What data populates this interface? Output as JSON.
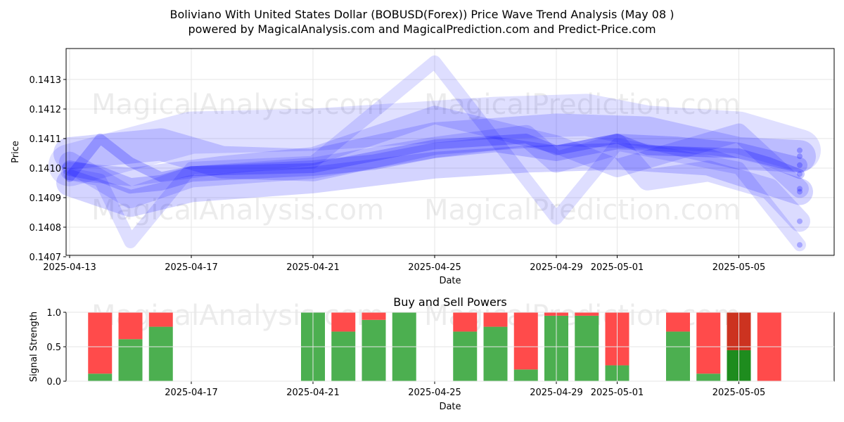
{
  "chart_data": [
    {
      "type": "line",
      "title_line1": "Boliviano With United States Dollar (BOBUSD(Forex)) Price Wave Trend Analysis (May 08 )",
      "title_line2": "powered by MagicalAnalysis.com and MagicalPrediction.com and Predict-Price.com",
      "xlabel": "Date",
      "ylabel": "Price",
      "xlim": [
        "2025-04-13",
        "2025-05-07"
      ],
      "ylim": [
        0.1407,
        0.1414
      ],
      "x_ticks": [
        "2025-04-13",
        "2025-04-17",
        "2025-04-21",
        "2025-04-25",
        "2025-04-29",
        "2025-05-01",
        "2025-05-05"
      ],
      "y_ticks": [
        "0.1407",
        "0.1408",
        "0.1409",
        "0.1410",
        "0.1411",
        "0.1412",
        "0.1413"
      ],
      "grid": true,
      "watermarks": [
        "MagicalAnalysis.com",
        "MagicalPrediction.com"
      ],
      "series_color": "#0000ff",
      "series": [
        {
          "x": [
            "2025-04-13",
            "2025-04-14",
            "2025-04-15",
            "2025-04-16",
            "2025-04-17",
            "2025-04-21",
            "2025-04-22",
            "2025-04-23",
            "2025-04-24",
            "2025-04-25",
            "2025-04-28",
            "2025-04-29",
            "2025-04-30",
            "2025-05-01",
            "2025-05-02",
            "2025-05-05",
            "2025-05-06",
            "2025-05-07"
          ],
          "y": [
            0.14097,
            0.1411,
            0.14102,
            0.14097,
            0.14099,
            0.141,
            0.14102,
            0.14104,
            0.14106,
            0.14108,
            0.1411,
            0.14106,
            0.14108,
            0.1411,
            0.14106,
            0.14105,
            0.14102,
            0.14098
          ]
        },
        {
          "x": [
            "2025-04-13",
            "2025-04-14",
            "2025-04-15",
            "2025-04-16",
            "2025-04-17",
            "2025-04-21",
            "2025-04-23",
            "2025-04-25",
            "2025-04-27",
            "2025-04-29",
            "2025-05-01",
            "2025-05-03",
            "2025-05-05",
            "2025-05-07"
          ],
          "y": [
            0.141,
            0.14098,
            0.14094,
            0.14095,
            0.14098,
            0.141,
            0.14102,
            0.14106,
            0.14108,
            0.14105,
            0.14109,
            0.14108,
            0.14106,
            0.14101
          ]
        },
        {
          "x": [
            "2025-04-13",
            "2025-04-15",
            "2025-04-17",
            "2025-04-21",
            "2025-04-25",
            "2025-04-28",
            "2025-04-29",
            "2025-05-01",
            "2025-05-02",
            "2025-05-04",
            "2025-05-06",
            "2025-05-07"
          ],
          "y": [
            0.14102,
            0.1409,
            0.14097,
            0.141,
            0.14107,
            0.14111,
            0.14102,
            0.14108,
            0.14096,
            0.14099,
            0.14093,
            0.14082
          ]
        },
        {
          "x": [
            "2025-04-13",
            "2025-04-14",
            "2025-04-15",
            "2025-04-17",
            "2025-04-21",
            "2025-04-25",
            "2025-04-29",
            "2025-05-01",
            "2025-05-05",
            "2025-05-07"
          ],
          "y": [
            0.14098,
            0.14096,
            0.14075,
            0.141,
            0.14102,
            0.14136,
            0.14083,
            0.14108,
            0.141,
            0.14074
          ]
        },
        {
          "x": [
            "2025-04-13",
            "2025-04-16",
            "2025-04-18",
            "2025-04-21",
            "2025-04-25",
            "2025-04-29",
            "2025-05-02",
            "2025-05-05",
            "2025-05-07"
          ],
          "y": [
            0.14105,
            0.14108,
            0.14102,
            0.14101,
            0.1411,
            0.14113,
            0.14112,
            0.14105,
            0.14104
          ]
        },
        {
          "x": [
            "2025-04-13",
            "2025-04-15",
            "2025-04-17",
            "2025-04-21",
            "2025-04-25",
            "2025-04-28",
            "2025-05-01",
            "2025-05-04",
            "2025-05-07"
          ],
          "y": [
            0.14095,
            0.14088,
            0.14093,
            0.14096,
            0.14101,
            0.14103,
            0.14104,
            0.14102,
            0.14092
          ]
        },
        {
          "x": [
            "2025-04-13",
            "2025-04-17",
            "2025-04-21",
            "2025-04-24",
            "2025-04-27",
            "2025-04-30",
            "2025-05-02",
            "2025-05-05",
            "2025-05-07"
          ],
          "y": [
            0.14101,
            0.14112,
            0.14113,
            0.14115,
            0.14117,
            0.14118,
            0.14114,
            0.14112,
            0.14106
          ]
        },
        {
          "x": [
            "2025-04-13",
            "2025-04-15",
            "2025-04-18",
            "2025-04-21",
            "2025-04-25",
            "2025-04-29",
            "2025-05-01",
            "2025-05-05",
            "2025-05-07"
          ],
          "y": [
            0.14099,
            0.14097,
            0.14101,
            0.14104,
            0.14118,
            0.14108,
            0.141,
            0.14112,
            0.14093
          ]
        }
      ]
    },
    {
      "type": "bar",
      "title": "Buy and Sell Powers",
      "xlabel": "Date",
      "ylabel": "Signal Strength",
      "xlim": [
        "2025-04-13",
        "2025-05-07"
      ],
      "ylim": [
        0.0,
        1.0
      ],
      "x_ticks": [
        "2025-04-17",
        "2025-04-21",
        "2025-04-25",
        "2025-04-29",
        "2025-05-01",
        "2025-05-05"
      ],
      "y_ticks": [
        "0.0",
        "0.5",
        "1.0"
      ],
      "buy_color": "#4caf50",
      "sell_color": "#ff4b4b",
      "dark_buy_color": "#1e8c1e",
      "dark_sell_color": "#cc3320",
      "dates": [
        "2025-04-14",
        "2025-04-15",
        "2025-04-16",
        "2025-04-21",
        "2025-04-22",
        "2025-04-23",
        "2025-04-24",
        "2025-04-26",
        "2025-04-27",
        "2025-04-28",
        "2025-04-29",
        "2025-04-30",
        "2025-05-01",
        "2025-05-03",
        "2025-05-04",
        "2025-05-05",
        "2025-05-06"
      ],
      "buy": [
        0.11,
        0.61,
        0.79,
        1.0,
        0.72,
        0.89,
        1.0,
        0.72,
        0.79,
        0.17,
        0.95,
        0.95,
        0.23,
        0.72,
        0.11,
        0.45,
        0.0
      ],
      "sell": [
        0.89,
        0.39,
        0.21,
        0.0,
        0.28,
        0.11,
        0.0,
        0.28,
        0.21,
        0.83,
        0.05,
        0.05,
        0.77,
        0.28,
        0.89,
        0.55,
        1.0
      ],
      "highlight": [
        false,
        false,
        false,
        false,
        false,
        false,
        false,
        false,
        false,
        false,
        false,
        false,
        false,
        false,
        false,
        true,
        false
      ]
    }
  ]
}
